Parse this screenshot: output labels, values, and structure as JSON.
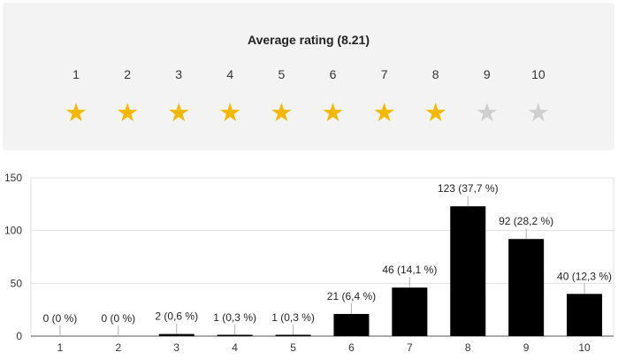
{
  "rating": {
    "title": "Average rating (8.21)",
    "average": 8.21,
    "scale": [
      "1",
      "2",
      "3",
      "4",
      "5",
      "6",
      "7",
      "8",
      "9",
      "10"
    ],
    "filled_stars": 8,
    "star_color": "#f5b800",
    "star_off_color": "#cfcfcf"
  },
  "chart_data": {
    "type": "bar",
    "categories": [
      "1",
      "2",
      "3",
      "4",
      "5",
      "6",
      "7",
      "8",
      "9",
      "10"
    ],
    "values": [
      0,
      0,
      2,
      1,
      1,
      21,
      46,
      123,
      92,
      40
    ],
    "labels": [
      "0 (0 %)",
      "0 (0 %)",
      "2 (0,6 %)",
      "1 (0,3 %)",
      "1 (0,3 %)",
      "21 (6,4 %)",
      "46 (14,1 %)",
      "123 (37,7 %)",
      "92 (28,2 %)",
      "40 (12,3 %)"
    ],
    "ylim": [
      0,
      150
    ],
    "yticks": [
      0,
      50,
      100,
      150
    ],
    "grid": true,
    "bar_color": "#000000",
    "title": "",
    "xlabel": "",
    "ylabel": ""
  }
}
